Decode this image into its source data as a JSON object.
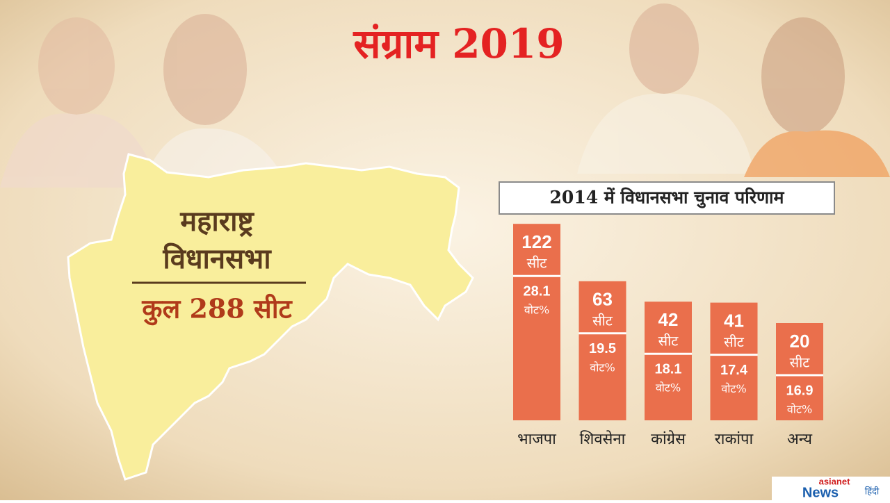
{
  "header": {
    "title": "संग्राम 2019"
  },
  "map": {
    "name_line1": "महाराष्ट्र",
    "name_line2": "विधानसभा",
    "total": "कुल 288 सीट"
  },
  "logo": {
    "brand": "asianet",
    "news": "News",
    "lang": "हिंदी"
  },
  "chart_data": {
    "type": "bar",
    "title": "2014 में विधानसभा चुनाव परिणाम",
    "categories": [
      "भाजपा",
      "शिवसेना",
      "कांग्रेस",
      "राकांपा",
      "अन्य"
    ],
    "color": "#ea6f4c",
    "series": [
      {
        "name": "सीट",
        "values": [
          122,
          63,
          42,
          41,
          20
        ]
      },
      {
        "name": "वोट%",
        "values": [
          28.1,
          19.5,
          18.1,
          17.4,
          16.9
        ]
      }
    ]
  }
}
